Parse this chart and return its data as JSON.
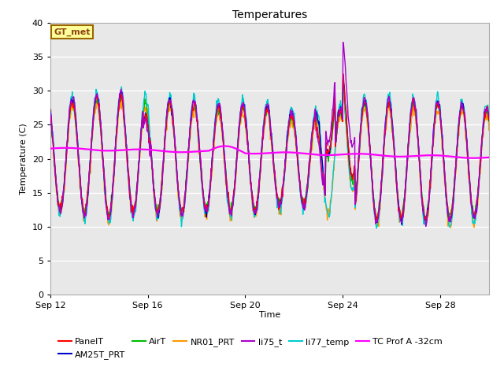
{
  "title": "Temperatures",
  "xlabel": "Time",
  "ylabel": "Temperature (C)",
  "ylim": [
    0,
    40
  ],
  "yticks": [
    0,
    5,
    10,
    15,
    20,
    25,
    30,
    35,
    40
  ],
  "xlim": [
    12,
    30
  ],
  "x_tick_days": [
    12,
    16,
    20,
    24,
    28
  ],
  "x_tick_labels": [
    "Sep 12",
    "Sep 16",
    "Sep 20",
    "Sep 24",
    "Sep 28"
  ],
  "annotation_text": "GT_met",
  "series": {
    "PanelT": {
      "color": "#ff0000",
      "lw": 1.0
    },
    "AM25T_PRT": {
      "color": "#0000cc",
      "lw": 1.0
    },
    "AirT": {
      "color": "#00bb00",
      "lw": 1.0
    },
    "NR01_PRT": {
      "color": "#ff9900",
      "lw": 1.0
    },
    "li75_t": {
      "color": "#aa00cc",
      "lw": 1.0
    },
    "li77_temp": {
      "color": "#00cccc",
      "lw": 1.0
    },
    "TC Prof A -32cm": {
      "color": "#ff00ff",
      "lw": 1.6
    }
  },
  "fig_bg": "#ffffff",
  "plot_bg": "#e8e8e8",
  "grid_color": "#ffffff",
  "figsize": [
    6.4,
    4.8
  ],
  "dpi": 100
}
